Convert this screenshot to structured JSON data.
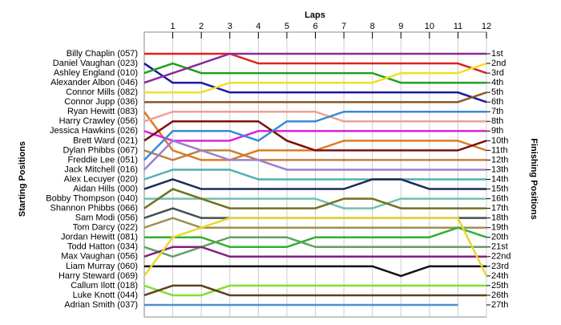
{
  "chart_data": {
    "type": "lap",
    "title": "Laps",
    "ylabel": "Starting Positions",
    "y2label": "Finishing Positions",
    "x": [
      0,
      1,
      2,
      3,
      4,
      5,
      6,
      7,
      8,
      9,
      10,
      11,
      12
    ],
    "xlim": [
      0,
      12
    ],
    "xticks": [
      1,
      2,
      3,
      4,
      5,
      6,
      7,
      8,
      9,
      10,
      11,
      12
    ],
    "ylim": [
      1,
      27
    ],
    "grid": true,
    "y2ticks": [
      {
        "value": 1,
        "label": "1st"
      },
      {
        "value": 2,
        "label": "2nd"
      },
      {
        "value": 3,
        "label": "3rd"
      },
      {
        "value": 4,
        "label": "4th"
      },
      {
        "value": 5,
        "label": "5th"
      },
      {
        "value": 6,
        "label": "6th"
      },
      {
        "value": 7,
        "label": "7th"
      },
      {
        "value": 8,
        "label": "8th"
      },
      {
        "value": 9,
        "label": "9th"
      },
      {
        "value": 10,
        "label": "10th"
      },
      {
        "value": 11,
        "label": "11th"
      },
      {
        "value": 12,
        "label": "12th"
      },
      {
        "value": 13,
        "label": "13th"
      },
      {
        "value": 14,
        "label": "14th"
      },
      {
        "value": 15,
        "label": "15th"
      },
      {
        "value": 16,
        "label": "16th"
      },
      {
        "value": 17,
        "label": "17th"
      },
      {
        "value": 18,
        "label": "18th"
      },
      {
        "value": 19,
        "label": "19th"
      },
      {
        "value": 20,
        "label": "20th"
      },
      {
        "value": 21,
        "label": "21st"
      },
      {
        "value": 22,
        "label": "22nd"
      },
      {
        "value": 23,
        "label": "23rd"
      },
      {
        "value": 24,
        "label": "24th"
      },
      {
        "value": 25,
        "label": "25th"
      },
      {
        "value": 26,
        "label": "26th"
      },
      {
        "value": 27,
        "label": "27th"
      }
    ],
    "series": [
      {
        "name": "Billy Chaplin (057)",
        "color": "#e02020",
        "values": [
          1,
          1,
          1,
          1,
          2,
          2,
          2,
          2,
          2,
          2,
          2,
          2,
          3
        ]
      },
      {
        "name": "Daniel Vaughan (023)",
        "color": "#1a1aa0",
        "values": [
          2,
          4,
          4,
          5,
          5,
          5,
          5,
          5,
          5,
          5,
          5,
          5,
          6
        ]
      },
      {
        "name": "Ashley England (010)",
        "color": "#20a020",
        "values": [
          3,
          2,
          3,
          3,
          3,
          3,
          3,
          3,
          3,
          4,
          4,
          4,
          4
        ]
      },
      {
        "name": "Alexander Albon (046)",
        "color": "#8a2a9a",
        "values": [
          4,
          3,
          2,
          1,
          1,
          1,
          1,
          1,
          1,
          1,
          1,
          1,
          1
        ]
      },
      {
        "name": "Connor Mills (082)",
        "color": "#f0e020",
        "values": [
          5,
          5,
          5,
          4,
          4,
          4,
          4,
          4,
          4,
          3,
          3,
          3,
          2
        ]
      },
      {
        "name": "Connor Jupp (036)",
        "color": "#8a5a2a",
        "values": [
          6,
          6,
          6,
          6,
          6,
          6,
          6,
          6,
          6,
          6,
          6,
          6,
          5
        ]
      },
      {
        "name": "Ryan Hewitt (083)",
        "color": "#e07a20",
        "values": [
          7,
          11,
          12,
          12,
          11,
          11,
          11,
          10,
          10,
          10,
          10,
          10,
          11
        ]
      },
      {
        "name": "Harry Crawley (056)",
        "color": "#f0a090",
        "values": [
          8,
          7,
          7,
          7,
          7,
          7,
          7,
          8,
          8,
          8,
          8,
          8,
          8
        ]
      },
      {
        "name": "Jessica Hawkins (026)",
        "color": "#e020e0",
        "values": [
          9,
          10,
          10,
          10,
          9,
          9,
          9,
          9,
          9,
          9,
          9,
          9,
          9
        ]
      },
      {
        "name": "Brett Ward (021)",
        "color": "#7a1010",
        "values": [
          10,
          8,
          8,
          8,
          8,
          10,
          11,
          11,
          11,
          11,
          11,
          11,
          10
        ]
      },
      {
        "name": "Dylan Phibbs (067)",
        "color": "#c08040",
        "values": [
          11,
          12,
          11,
          11,
          12,
          12,
          12,
          12,
          12,
          12,
          12,
          12,
          12
        ]
      },
      {
        "name": "Freddie Lee (051)",
        "color": "#3a8ad0",
        "values": [
          12,
          9,
          9,
          9,
          10,
          8,
          8,
          7,
          7,
          7,
          7,
          7,
          7
        ]
      },
      {
        "name": "Jack Mitchell (016)",
        "color": "#9a80d0",
        "values": [
          13,
          10,
          11,
          12,
          12,
          13,
          13,
          13,
          13,
          13,
          13,
          13,
          13
        ]
      },
      {
        "name": "Alex Lecuyer (020)",
        "color": "#50b0b0",
        "values": [
          14,
          13,
          13,
          13,
          14,
          14,
          14,
          14,
          14,
          14,
          14,
          14,
          14
        ]
      },
      {
        "name": "Aidan Hills (000)",
        "color": "#1a2a5a",
        "values": [
          15,
          14,
          15,
          15,
          15,
          15,
          15,
          15,
          14,
          14,
          15,
          15,
          15
        ]
      },
      {
        "name": "Bobby Thompson (040)",
        "color": "#70c0b0",
        "values": [
          16,
          16,
          16,
          16,
          16,
          16,
          16,
          17,
          17,
          16,
          16,
          16,
          16
        ]
      },
      {
        "name": "Shannon Phibbs (066)",
        "color": "#707020",
        "values": [
          17,
          15,
          16,
          17,
          17,
          17,
          17,
          16,
          16,
          17,
          17,
          17,
          17
        ]
      },
      {
        "name": "Sam Modi (056)",
        "color": "#405050",
        "values": [
          18,
          17,
          18,
          18,
          18,
          18,
          18,
          18,
          18,
          18,
          18,
          18,
          18
        ]
      },
      {
        "name": "Tom Darcy (022)",
        "color": "#a09050",
        "values": [
          19,
          18,
          19,
          19,
          19,
          19,
          19,
          19,
          19,
          19,
          19,
          19,
          19
        ]
      },
      {
        "name": "Jordan Hewitt (081)",
        "color": "#30b030",
        "values": [
          20,
          20,
          20,
          21,
          21,
          21,
          20,
          20,
          20,
          20,
          20,
          19,
          20
        ]
      },
      {
        "name": "Todd Hatton (034)",
        "color": "#60a060",
        "values": [
          21,
          22,
          21,
          20,
          20,
          20,
          21,
          21,
          21,
          21,
          21,
          21,
          21
        ]
      },
      {
        "name": "Max Vaughan (056)",
        "color": "#802080",
        "values": [
          22,
          21,
          21,
          22,
          22,
          22,
          22,
          22,
          22,
          22,
          22,
          22,
          22
        ]
      },
      {
        "name": "Liam Murray (060)",
        "color": "#101010",
        "values": [
          23,
          23,
          23,
          23,
          23,
          23,
          23,
          23,
          23,
          24,
          23,
          23,
          23
        ]
      },
      {
        "name": "Harry Steward (069)",
        "color": "#e8d830",
        "values": [
          24,
          20,
          19,
          18,
          18,
          18,
          18,
          18,
          18,
          18,
          18,
          18,
          24
        ]
      },
      {
        "name": "Callum Ilott (018)",
        "color": "#80e030",
        "values": [
          25,
          26,
          26,
          25,
          25,
          25,
          25,
          25,
          25,
          25,
          25,
          25,
          25
        ]
      },
      {
        "name": "Luke Knott (044)",
        "color": "#604020",
        "values": [
          26,
          25,
          25,
          26,
          26,
          26,
          26,
          26,
          26,
          26,
          26,
          26,
          26
        ]
      },
      {
        "name": "Adrian Smith (037)",
        "color": "#4a90d0",
        "values": [
          27,
          27,
          27,
          27,
          27,
          27,
          27,
          27,
          27,
          27,
          27,
          27,
          null
        ]
      }
    ]
  }
}
